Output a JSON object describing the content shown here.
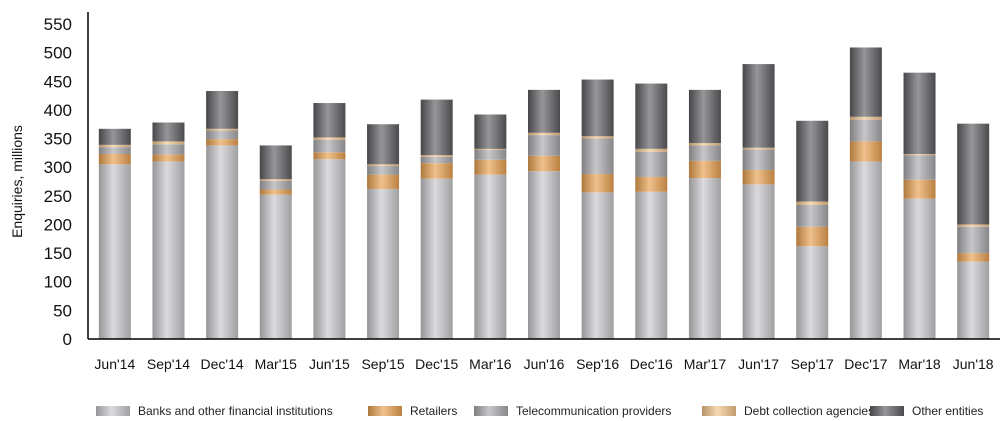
{
  "chart_data": {
    "type": "bar",
    "stacked": true,
    "categories": [
      "Jun'14",
      "Sep'14",
      "Dec'14",
      "Mar'15",
      "Jun'15",
      "Sep'15",
      "Dec'15",
      "Mar'16",
      "Jun'16",
      "Sep'16",
      "Dec'16",
      "Mar'17",
      "Jun'17",
      "Sep'17",
      "Dec'17",
      "Mar'18",
      "Jun'18"
    ],
    "ylabel": "Enquiries, millions",
    "ylim": [
      0,
      550
    ],
    "yticks": [
      0,
      50,
      100,
      150,
      200,
      250,
      300,
      350,
      400,
      450,
      500,
      550
    ],
    "legend_position": "bottom",
    "series": [
      {
        "name": "Banks and other financial institutions",
        "color": "#c8c8cc",
        "values": [
          305,
          310,
          338,
          252,
          314,
          262,
          280,
          287,
          293,
          256,
          257,
          281,
          270,
          162,
          310,
          245,
          135
        ]
      },
      {
        "name": "Retailers",
        "color": "#e8a050",
        "values": [
          18,
          12,
          11,
          9,
          12,
          25,
          27,
          26,
          27,
          32,
          26,
          30,
          25,
          34,
          35,
          33,
          15
        ]
      },
      {
        "name": "Telecommunication providers",
        "color": "#a9a9ad",
        "values": [
          12,
          18,
          15,
          15,
          22,
          15,
          11,
          17,
          36,
          62,
          44,
          27,
          36,
          38,
          38,
          43,
          46
        ]
      },
      {
        "name": "Debt collection agencies",
        "color": "#f2c48a",
        "values": [
          4,
          5,
          3,
          3,
          4,
          3,
          3,
          2,
          4,
          4,
          5,
          4,
          3,
          6,
          5,
          2,
          4
        ]
      },
      {
        "name": "Other entities",
        "color": "#5e5e62",
        "values": [
          28,
          33,
          66,
          59,
          60,
          70,
          97,
          60,
          75,
          99,
          114,
          93,
          146,
          141,
          121,
          142,
          176
        ]
      }
    ]
  }
}
